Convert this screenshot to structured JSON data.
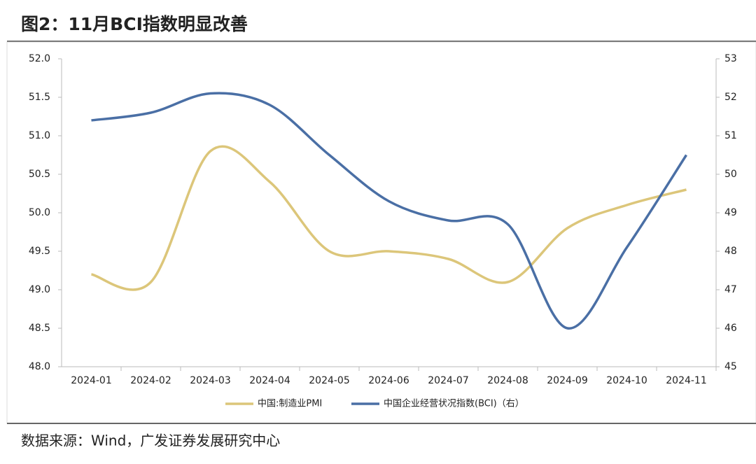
{
  "title": "图2：11月BCI指数明显改善",
  "source": "数据来源：Wind，广发证券发展研究中心",
  "chart_data": {
    "type": "line",
    "categories": [
      "2024-01",
      "2024-02",
      "2024-03",
      "2024-04",
      "2024-05",
      "2024-06",
      "2024-07",
      "2024-08",
      "2024-09",
      "2024-10",
      "2024-11"
    ],
    "series": [
      {
        "name": "中国:制造业PMI",
        "color": "#dcc67a",
        "values": [
          49.2,
          49.1,
          50.8,
          50.4,
          49.5,
          49.5,
          49.4,
          49.1,
          49.8,
          50.1,
          50.3
        ]
      },
      {
        "name": "中国企业经营状况指数(BCI)（右）",
        "color": "#4a6fa5",
        "axis": "y2",
        "values": [
          51.4,
          51.6,
          52.1,
          51.8,
          50.5,
          49.3,
          48.8,
          48.7,
          46.0,
          48.1,
          50.5
        ]
      }
    ],
    "ylim": [
      48,
      52
    ],
    "yticks": [
      {
        "value": 48,
        "label": "48.0"
      },
      48.5,
      {
        "value": 49,
        "label": "49.0"
      },
      49.5,
      {
        "value": 50,
        "label": "50.0"
      },
      50.5,
      {
        "value": 51,
        "label": "51.0"
      },
      51.5,
      {
        "value": 52,
        "label": "52.0"
      }
    ],
    "y2lim": [
      45,
      53
    ],
    "y2ticks": [
      45,
      46,
      47,
      48,
      49,
      50,
      51,
      52,
      53
    ],
    "legend": "bottom"
  }
}
